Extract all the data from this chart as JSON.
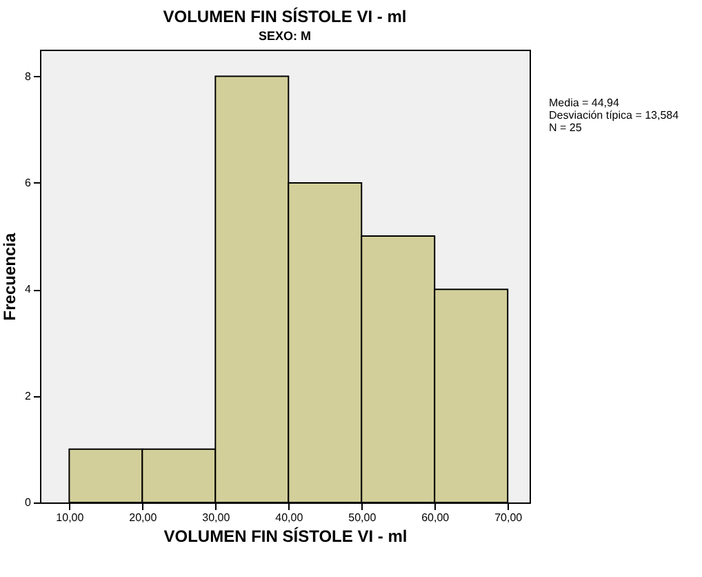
{
  "chart_data": {
    "type": "histogram",
    "title": "VOLUMEN FIN SÍSTOLE VI - ml",
    "subtitle": "SEXO: M",
    "xlabel": "VOLUMEN FIN SÍSTOLE VI - ml",
    "ylabel": "Frecuencia",
    "bins": [
      10,
      20,
      30,
      40,
      50,
      60,
      70
    ],
    "values": [
      1,
      1,
      8,
      6,
      5,
      4
    ],
    "color": "#d3cf9a",
    "xlim": [
      6,
      73
    ],
    "xticks": [
      {
        "value": 10,
        "label": "10,00"
      },
      {
        "value": 20,
        "label": "20,00"
      },
      {
        "value": 30,
        "label": "30,00"
      },
      {
        "value": 40,
        "label": "40,00"
      },
      {
        "value": 50,
        "label": "50,00"
      },
      {
        "value": 60,
        "label": "60,00"
      },
      {
        "value": 70,
        "label": "70,00"
      }
    ],
    "ylim": [
      0,
      8.5
    ],
    "yticks": [
      0,
      2,
      4,
      6,
      8
    ],
    "grid": false,
    "annotations": [
      "Media = 44,94",
      "Desviación típica = 13,584",
      "N = 25"
    ]
  }
}
